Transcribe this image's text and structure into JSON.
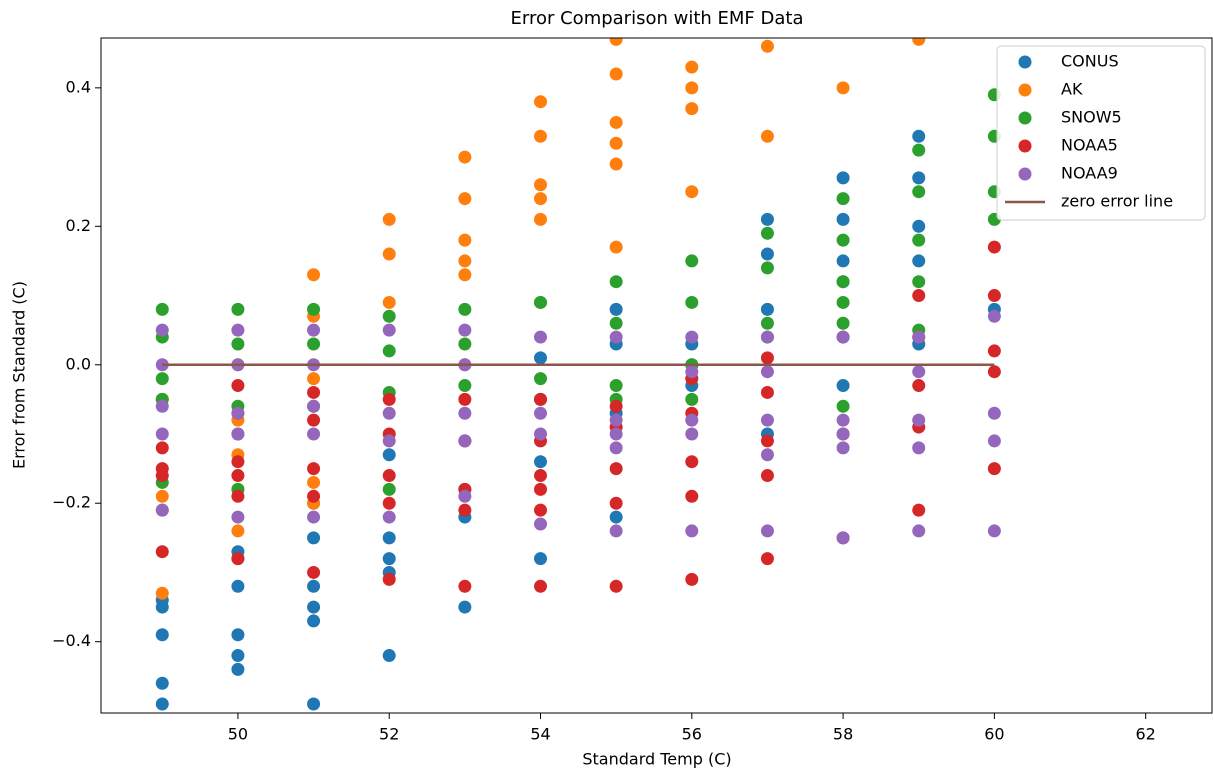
{
  "chart_data": {
    "type": "scatter",
    "title": "Error Comparison with EMF Data",
    "x_label": "Standard Temp (C)",
    "y_label": "Error from Standard (C)",
    "xlim": [
      48.19,
      62.89
    ],
    "ylim": [
      -0.503,
      0.472
    ],
    "xticks": [
      50,
      52,
      54,
      56,
      58,
      60,
      62
    ],
    "yticks": [
      {
        "value": -0.4,
        "label": "−0.4"
      },
      {
        "value": -0.2,
        "label": "−0.2"
      },
      {
        "value": 0,
        "label": "0.0"
      },
      0.2,
      0.4
    ],
    "legend": "upper right",
    "grid": false,
    "series": [
      {
        "name": "CONUS",
        "color": "#1f77b4",
        "x": [
          49,
          49,
          49,
          49,
          49,
          50,
          50,
          50,
          50,
          50,
          50,
          51,
          51,
          51,
          51,
          51,
          51,
          52,
          52,
          52,
          52,
          52,
          53,
          53,
          53,
          54,
          54,
          54,
          55,
          55,
          55,
          55,
          56,
          56,
          56,
          57,
          57,
          57,
          57,
          58,
          58,
          58,
          58,
          58,
          59,
          59,
          59,
          59,
          59,
          60
        ],
        "values": [
          -0.34,
          -0.39,
          -0.46,
          -0.49,
          -0.35,
          -0.27,
          -0.32,
          -0.39,
          -0.42,
          -0.44,
          -0.28,
          -0.2,
          -0.25,
          -0.32,
          -0.35,
          -0.37,
          -0.49,
          -0.13,
          -0.25,
          -0.28,
          -0.3,
          -0.42,
          -0.11,
          -0.22,
          -0.35,
          0.01,
          -0.14,
          -0.28,
          0.08,
          0.03,
          -0.07,
          -0.22,
          0.03,
          -0.03,
          0.0,
          0.21,
          0.16,
          0.08,
          -0.1,
          0.27,
          0.21,
          0.15,
          0.12,
          -0.03,
          0.33,
          0.27,
          0.2,
          0.15,
          0.03,
          0.08
        ]
      },
      {
        "name": "AK",
        "color": "#ff7f0e",
        "x": [
          49,
          49,
          49,
          49,
          50,
          50,
          50,
          50,
          50,
          51,
          51,
          51,
          51,
          51,
          52,
          52,
          52,
          53,
          53,
          53,
          53,
          53,
          53,
          54,
          54,
          54,
          54,
          54,
          54,
          55,
          55,
          55,
          55,
          55,
          55,
          56,
          56,
          56,
          56,
          57,
          57,
          58,
          59
        ],
        "values": [
          -0.05,
          -0.19,
          -0.21,
          -0.33,
          0.0,
          -0.08,
          -0.13,
          -0.18,
          -0.24,
          0.13,
          0.07,
          -0.02,
          -0.17,
          -0.2,
          0.21,
          0.16,
          0.09,
          0.3,
          0.24,
          0.18,
          0.15,
          0.13,
          0.0,
          0.38,
          0.33,
          0.26,
          0.24,
          0.21,
          0.09,
          0.47,
          0.42,
          0.35,
          0.32,
          0.29,
          0.17,
          0.43,
          0.4,
          0.37,
          0.25,
          0.46,
          0.33,
          0.4,
          0.47
        ]
      },
      {
        "name": "SNOW5",
        "color": "#2ca02c",
        "x": [
          49,
          49,
          49,
          49,
          49,
          50,
          50,
          50,
          50,
          50,
          51,
          51,
          51,
          52,
          52,
          52,
          52,
          53,
          53,
          53,
          53,
          54,
          54,
          54,
          55,
          55,
          55,
          55,
          56,
          56,
          56,
          56,
          57,
          57,
          57,
          57,
          58,
          58,
          58,
          58,
          58,
          58,
          59,
          59,
          59,
          59,
          59,
          60,
          60,
          60,
          60
        ],
        "values": [
          0.08,
          0.04,
          -0.02,
          -0.05,
          -0.17,
          0.08,
          0.03,
          -0.06,
          -0.1,
          -0.18,
          0.08,
          0.03,
          -0.06,
          0.07,
          0.02,
          -0.04,
          -0.18,
          0.08,
          0.03,
          -0.03,
          -0.18,
          0.09,
          -0.02,
          -0.05,
          0.12,
          0.06,
          -0.03,
          -0.05,
          0.15,
          0.09,
          0.0,
          -0.05,
          0.19,
          0.14,
          0.06,
          0.04,
          0.24,
          0.18,
          0.12,
          0.09,
          0.06,
          -0.06,
          0.31,
          0.25,
          0.18,
          0.12,
          0.05,
          0.39,
          0.33,
          0.25,
          0.21
        ]
      },
      {
        "name": "NOAA5",
        "color": "#d62728",
        "x": [
          49,
          49,
          49,
          49,
          50,
          50,
          50,
          50,
          50,
          50,
          51,
          51,
          51,
          51,
          51,
          52,
          52,
          52,
          52,
          52,
          53,
          53,
          53,
          53,
          53,
          54,
          54,
          54,
          54,
          54,
          54,
          55,
          55,
          55,
          55,
          55,
          56,
          56,
          56,
          56,
          56,
          57,
          57,
          57,
          57,
          57,
          58,
          58,
          58,
          59,
          59,
          59,
          59,
          59,
          60,
          60,
          60,
          60,
          60
        ],
        "values": [
          -0.12,
          -0.15,
          -0.16,
          -0.27,
          -0.03,
          -0.07,
          -0.14,
          -0.16,
          -0.19,
          -0.28,
          -0.04,
          -0.08,
          -0.15,
          -0.19,
          -0.3,
          -0.05,
          -0.1,
          -0.16,
          -0.2,
          -0.31,
          -0.05,
          -0.11,
          -0.18,
          -0.21,
          -0.32,
          -0.05,
          -0.11,
          -0.16,
          -0.18,
          -0.21,
          -0.32,
          -0.06,
          -0.09,
          -0.15,
          -0.2,
          -0.32,
          -0.07,
          -0.14,
          -0.19,
          -0.31,
          -0.02,
          0.01,
          -0.04,
          -0.11,
          -0.16,
          -0.28,
          0.04,
          -0.1,
          -0.25,
          0.1,
          0.04,
          -0.03,
          -0.09,
          -0.21,
          0.17,
          0.1,
          0.02,
          -0.01,
          -0.15
        ]
      },
      {
        "name": "NOAA9",
        "color": "#9467bd",
        "x": [
          49,
          49,
          49,
          49,
          49,
          50,
          50,
          50,
          50,
          50,
          51,
          51,
          51,
          51,
          51,
          52,
          52,
          52,
          52,
          53,
          53,
          53,
          53,
          53,
          54,
          54,
          54,
          54,
          55,
          55,
          55,
          55,
          55,
          56,
          56,
          56,
          56,
          56,
          57,
          57,
          57,
          57,
          57,
          58,
          58,
          58,
          58,
          58,
          59,
          59,
          59,
          59,
          59,
          60,
          60,
          60,
          60
        ],
        "values": [
          0.05,
          0.0,
          -0.06,
          -0.1,
          -0.21,
          0.05,
          0.0,
          -0.07,
          -0.1,
          -0.22,
          0.05,
          0.0,
          -0.06,
          -0.1,
          -0.22,
          0.05,
          -0.07,
          -0.11,
          -0.22,
          0.05,
          0.0,
          -0.07,
          -0.11,
          -0.19,
          0.04,
          -0.07,
          -0.1,
          -0.23,
          0.04,
          -0.08,
          -0.1,
          -0.12,
          -0.24,
          0.04,
          -0.01,
          -0.08,
          -0.1,
          -0.24,
          0.04,
          -0.01,
          -0.08,
          -0.13,
          -0.24,
          0.04,
          -0.08,
          -0.1,
          -0.12,
          -0.25,
          0.04,
          -0.01,
          -0.08,
          -0.12,
          -0.24,
          0.07,
          -0.07,
          -0.11,
          -0.24
        ]
      },
      {
        "name": "zero error line",
        "color": "#8c564b",
        "type": "line",
        "x": [
          49,
          60
        ],
        "values": [
          0,
          0
        ]
      }
    ]
  }
}
